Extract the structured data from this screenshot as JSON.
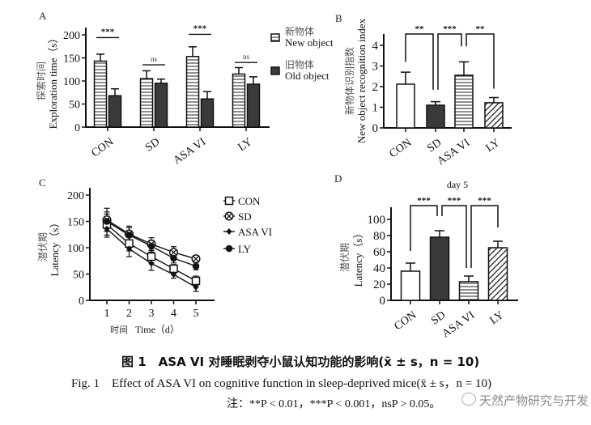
{
  "figure": {
    "caption_cn": "图 1　ASA VI 对睡眠剥夺小鼠认知功能的影响(x̄ ± s，n = 10)",
    "caption_en": "Fig. 1　Effect of ASA VI on cognitive function in sleep-deprived mice(x̄ ± s，n = 10)",
    "note": "注：**P < 0.01，***P < 0.001，nsP > 0.05。",
    "watermark": "天然产物研究与开发"
  },
  "colors": {
    "dark_bar": "#3a3a3a",
    "line": "#111111",
    "background": "#ffffff"
  },
  "chart_data": [
    {
      "panel": "A",
      "type": "bar",
      "title": "",
      "ylabel_cn": "探索时间",
      "ylabel": "Exploration time（s）",
      "xlabel": "",
      "ylim": [
        0,
        200
      ],
      "yticks": [
        0,
        50,
        100,
        150,
        200
      ],
      "categories": [
        "CON",
        "SD",
        "ASA VI",
        "LY"
      ],
      "series": [
        {
          "name": "New object",
          "name_cn": "新物体",
          "pattern": "horizontal-stripes",
          "values": [
            143,
            105,
            153,
            115
          ],
          "errors": [
            15,
            17,
            21,
            14
          ]
        },
        {
          "name": "Old object",
          "name_cn": "旧物体",
          "pattern": "solid-dark",
          "values": [
            68,
            95,
            61,
            93
          ],
          "errors": [
            15,
            9,
            16,
            16
          ]
        }
      ],
      "significance": [
        "***",
        "ns",
        "***",
        "ns"
      ],
      "legend": "right"
    },
    {
      "panel": "B",
      "type": "bar",
      "title": "",
      "ylabel_cn": "新物体识别指数",
      "ylabel": "New object recognition index",
      "xlabel": "",
      "ylim": [
        0,
        4.5
      ],
      "yticks": [
        0,
        1,
        2,
        3,
        4
      ],
      "categories": [
        "CON",
        "SD",
        "ASA VI",
        "LY"
      ],
      "patterns": [
        "white",
        "solid-dark",
        "horizontal-stripes",
        "diagonal-stripes"
      ],
      "values": [
        2.12,
        1.1,
        2.55,
        1.22
      ],
      "errors": [
        0.58,
        0.17,
        0.65,
        0.25
      ],
      "comparisons": [
        {
          "from": "CON",
          "to": "SD",
          "label": "**"
        },
        {
          "from": "SD",
          "to": "ASA VI",
          "label": "***"
        },
        {
          "from": "ASA VI",
          "to": "LY",
          "label": "**"
        }
      ]
    },
    {
      "panel": "C",
      "type": "line",
      "title": "",
      "ylabel_cn": "潜伏期",
      "ylabel": "Latency（s）",
      "xlabel_cn": "时间",
      "xlabel": "Time（d）",
      "ylim": [
        0,
        200
      ],
      "yticks": [
        0,
        50,
        100,
        150,
        200
      ],
      "x": [
        1,
        2,
        3,
        4,
        5
      ],
      "series": [
        {
          "name": "CON",
          "marker": "open-square",
          "values": [
            144,
            108,
            83,
            60,
            37
          ],
          "errors": [
            20,
            14,
            12,
            8,
            9
          ]
        },
        {
          "name": "SD",
          "marker": "crossed-circle",
          "values": [
            153,
            126,
            107,
            91,
            79
          ],
          "errors": [
            22,
            15,
            12,
            11,
            6
          ]
        },
        {
          "name": "ASA VI",
          "marker": "small-diamond",
          "values": [
            136,
            98,
            70,
            49,
            25
          ],
          "errors": [
            16,
            15,
            13,
            7,
            8
          ]
        },
        {
          "name": "LY",
          "marker": "filled-circle",
          "values": [
            150,
            124,
            103,
            80,
            65
          ],
          "errors": [
            18,
            14,
            11,
            9,
            7
          ]
        }
      ],
      "legend": "right"
    },
    {
      "panel": "D",
      "type": "bar",
      "title": "day 5",
      "ylabel_cn": "潜伏期",
      "ylabel": "Latency（s）",
      "xlabel": "",
      "ylim": [
        0,
        115
      ],
      "yticks": [
        0,
        20,
        40,
        60,
        80,
        100
      ],
      "categories": [
        "CON",
        "SD",
        "ASA VI",
        "LY"
      ],
      "patterns": [
        "white",
        "solid-dark",
        "horizontal-stripes",
        "diagonal-stripes"
      ],
      "values": [
        36,
        78,
        23,
        65
      ],
      "errors": [
        10,
        8,
        7,
        8
      ],
      "comparisons": [
        {
          "from": "CON",
          "to": "SD",
          "label": "***"
        },
        {
          "from": "SD",
          "to": "ASA VI",
          "label": "***"
        },
        {
          "from": "ASA VI",
          "to": "LY",
          "label": "***"
        }
      ]
    }
  ]
}
